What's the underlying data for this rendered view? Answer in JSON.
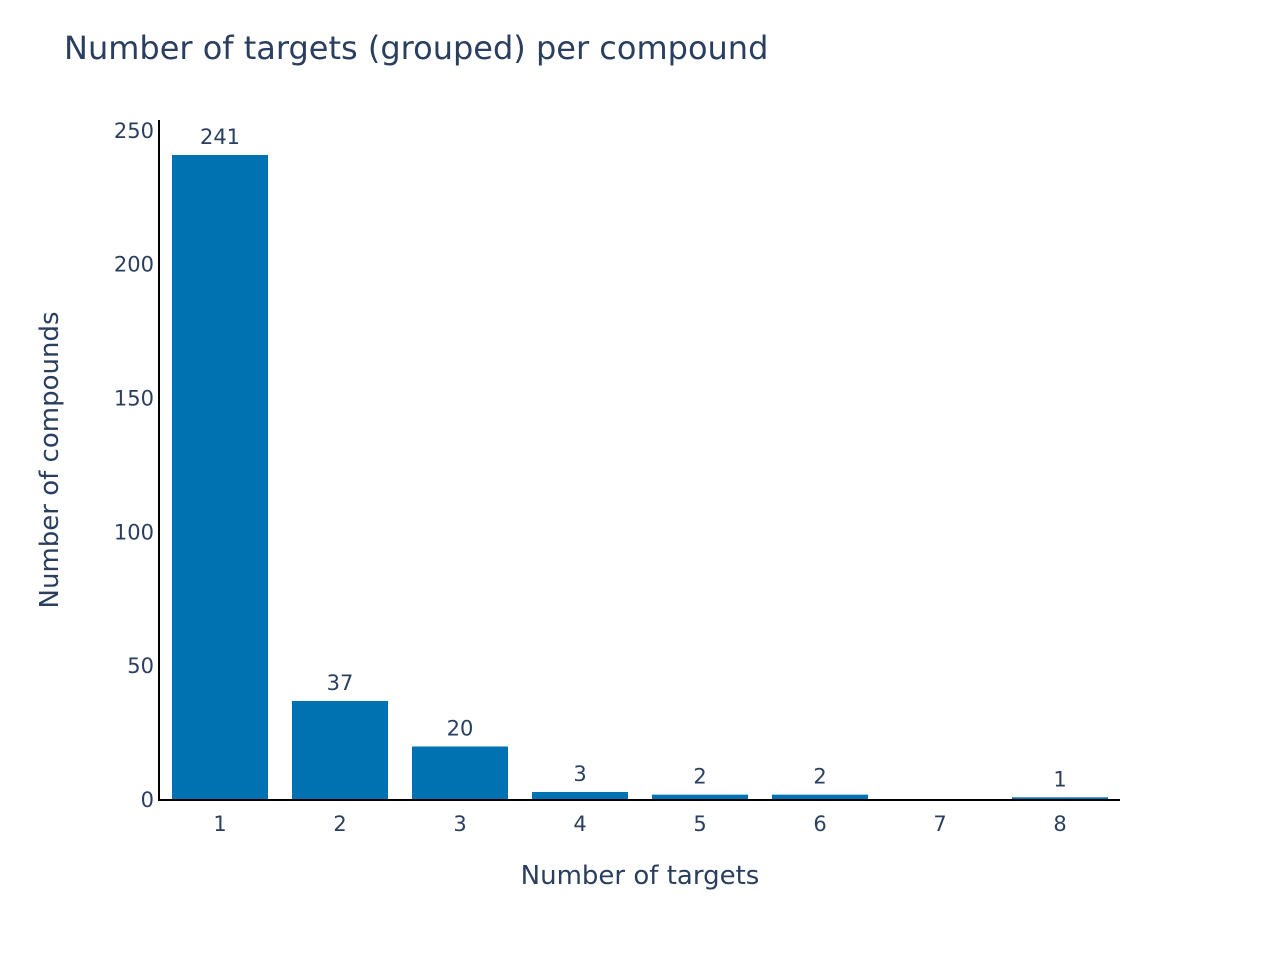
{
  "chart_data": {
    "type": "bar",
    "title": "Number of targets (grouped) per compound",
    "xlabel": "Number of targets",
    "ylabel": "Number of compounds",
    "categories": [
      "1",
      "2",
      "3",
      "4",
      "5",
      "6",
      "7",
      "8"
    ],
    "values": [
      241,
      37,
      20,
      3,
      2,
      2,
      0,
      1
    ],
    "data_labels": [
      "241",
      "37",
      "20",
      "3",
      "2",
      "2",
      "",
      "1"
    ],
    "y_ticks": [
      0,
      50,
      100,
      150,
      200,
      250
    ],
    "y_tick_labels": [
      "0",
      "50",
      "100",
      "150",
      "200",
      "250"
    ],
    "ylim": [
      0,
      253.7
    ],
    "grid": false,
    "legend": "none",
    "colors": {
      "bar": "#0072b2",
      "text": "#2a3f5f",
      "axis_line": "#000000"
    }
  }
}
